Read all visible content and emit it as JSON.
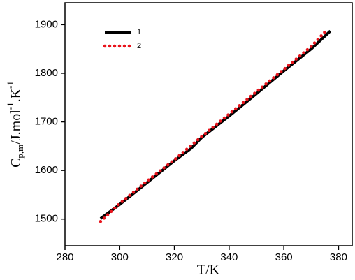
{
  "chart_data": {
    "type": "line",
    "x_label": "T/K",
    "y_label_parts": [
      "C",
      "p,m",
      "/J.mol",
      "-1",
      ".K",
      "-1"
    ],
    "xlim": [
      280,
      385
    ],
    "xticks": [
      280,
      300,
      320,
      340,
      360,
      380
    ],
    "ylim": [
      1445,
      1945
    ],
    "yticks": [
      1500,
      1600,
      1700,
      1800,
      1900
    ],
    "series": [
      {
        "name": "1",
        "color": "#000000",
        "style": "solid",
        "x": [
          293,
          300,
          310,
          320,
          326,
          330,
          340,
          350,
          360,
          370,
          377
        ],
        "values": [
          1501,
          1530,
          1575,
          1620,
          1645,
          1668,
          1712,
          1758,
          1805,
          1850,
          1887
        ]
      },
      {
        "name": "2",
        "color": "#e8141c",
        "style": "dotted",
        "x": [
          293,
          300,
          310,
          320,
          330,
          340,
          350,
          360,
          370,
          375
        ],
        "values": [
          1495,
          1532,
          1578,
          1622,
          1670,
          1716,
          1762,
          1808,
          1855,
          1885
        ]
      }
    ]
  }
}
